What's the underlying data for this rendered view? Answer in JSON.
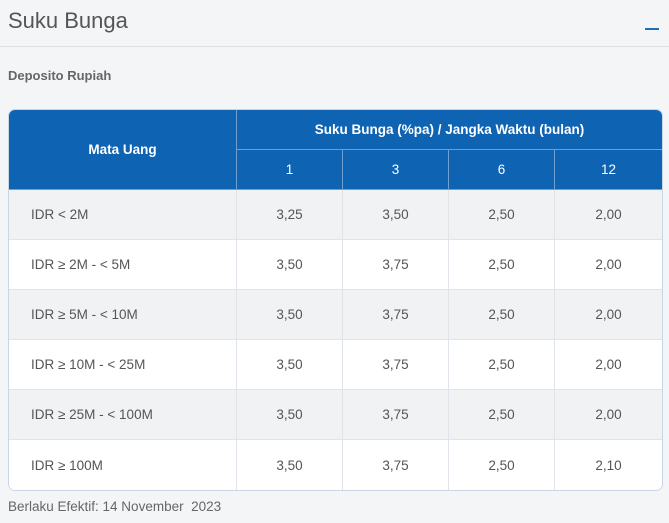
{
  "header": {
    "title": "Suku Bunga"
  },
  "section": {
    "subtitle": "Deposito Rupiah"
  },
  "table": {
    "col_header_main": "Mata Uang",
    "col_header_group": "Suku Bunga (%pa) / Jangka Waktu (bulan)",
    "terms": [
      "1",
      "3",
      "6",
      "12"
    ],
    "rows": [
      {
        "label": "IDR < 2M",
        "values": [
          "3,25",
          "3,50",
          "2,50",
          "2,00"
        ]
      },
      {
        "label": "IDR ≥ 2M - < 5M",
        "values": [
          "3,50",
          "3,75",
          "2,50",
          "2,00"
        ]
      },
      {
        "label": "IDR ≥ 5M - < 10M",
        "values": [
          "3,50",
          "3,75",
          "2,50",
          "2,00"
        ]
      },
      {
        "label": "IDR ≥ 10M - < 25M",
        "values": [
          "3,50",
          "3,75",
          "2,50",
          "2,00"
        ]
      },
      {
        "label": "IDR ≥ 25M - < 100M",
        "values": [
          "3,50",
          "3,75",
          "2,50",
          "2,00"
        ]
      },
      {
        "label": "IDR ≥ 100M",
        "values": [
          "3,50",
          "3,75",
          "2,50",
          "2,10"
        ]
      }
    ]
  },
  "footer": {
    "effective": "Berlaku Efektif: 14 November  2023"
  },
  "icons": {
    "collapse": "minus-icon"
  },
  "colors": {
    "header_blue": "#0e63b3",
    "accent": "#1f6fb2",
    "row_alt": "#f0f2f4"
  }
}
